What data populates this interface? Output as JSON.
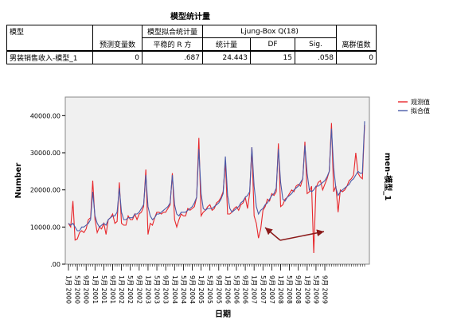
{
  "table": {
    "title": "模型统计量",
    "headers": {
      "model": "模型",
      "fit_stats_group": "模型拟合统计量",
      "ljung_box_group": "Ljung-Box Q(18)",
      "predictors": "预测变量数",
      "stationary_r2": "平稳的 R 方",
      "statistic": "统计量",
      "df": "DF",
      "sig": "Sig.",
      "outliers": "离群值数"
    },
    "row": {
      "model": "男装销售收入-模型_1",
      "predictors": "0",
      "stationary_r2": ".687",
      "statistic": "24.443",
      "df": "15",
      "sig": ".058",
      "outliers": "0"
    }
  },
  "chart_data": {
    "type": "line",
    "ylabel": "Number",
    "xlabel": "日期",
    "right_label": "men-模型_1",
    "ylim": [
      0,
      45000
    ],
    "yticks": [
      ".00",
      "10000.00",
      "20000.00",
      "30000.00",
      "40000.00"
    ],
    "ytick_values": [
      0,
      10000,
      20000,
      30000,
      40000
    ],
    "x_tick_labels": [
      "1月 2000",
      "5月 2000",
      "9月 2000",
      "1月 2001",
      "5月 2001",
      "9月 2001",
      "1月 2002",
      "5月 2002",
      "9月 2002",
      "1月 2003",
      "5月 2003",
      "9月 2003",
      "1月 2004",
      "5月 2004",
      "9月 2004",
      "1月 2005",
      "5月 2005",
      "9月 2005",
      "1月 2006",
      "5月 2006",
      "9月 2006",
      "1月 2007",
      "5月 2007",
      "9月 2007",
      "1月 2008",
      "5月 2008",
      "9月 2008",
      "1月 2009",
      "5月 2009",
      "9月 2009"
    ],
    "legend": "top-right",
    "series": [
      {
        "name": "观测值",
        "color": "#e8262b",
        "values": [
          11000,
          10000,
          17000,
          6500,
          6800,
          8500,
          9000,
          8500,
          9500,
          12000,
          12500,
          22500,
          12000,
          8500,
          10000,
          9500,
          11000,
          8000,
          12000,
          12500,
          13500,
          11000,
          11500,
          22000,
          11000,
          10500,
          10500,
          13000,
          12000,
          12000,
          13500,
          12000,
          13500,
          14000,
          15500,
          25500,
          8000,
          11000,
          10500,
          12500,
          14000,
          14000,
          13500,
          14000,
          14000,
          15000,
          16000,
          24500,
          12000,
          10000,
          12000,
          13500,
          13000,
          13000,
          15000,
          14500,
          15000,
          15500,
          18000,
          34000,
          13000,
          14000,
          14500,
          15500,
          16000,
          14500,
          15000,
          16500,
          17000,
          18000,
          19500,
          27500,
          13500,
          13500,
          14000,
          15000,
          15500,
          14500,
          16000,
          16500,
          18000,
          15000,
          19000,
          31500,
          13000,
          11000,
          7000,
          9500,
          14500,
          15500,
          17500,
          17000,
          19000,
          18500,
          19500,
          32500,
          15500,
          16000,
          17500,
          18000,
          19000,
          20000,
          19500,
          21000,
          21500,
          21000,
          23000,
          33000,
          19000,
          19500,
          21000,
          3000,
          20500,
          22000,
          22500,
          20000,
          21500,
          23000,
          25000,
          38000,
          19500,
          21000,
          14000,
          20000,
          19500,
          20000,
          21000,
          22500,
          23000,
          24000,
          30000,
          24500,
          23500,
          23000,
          37500
        ]
      },
      {
        "name": "拟合值",
        "color": "#4a5aa8",
        "values": [
          11000,
          10500,
          11000,
          10000,
          9000,
          9000,
          10000,
          10000,
          10500,
          11000,
          12000,
          19500,
          13000,
          11000,
          10000,
          10500,
          11000,
          10500,
          12000,
          12500,
          13000,
          13000,
          14000,
          20500,
          14000,
          12000,
          12000,
          12500,
          12500,
          12500,
          13500,
          13500,
          14000,
          15000,
          16000,
          24000,
          15500,
          13000,
          12000,
          12500,
          13500,
          13500,
          14000,
          14500,
          15000,
          15500,
          16500,
          24000,
          16000,
          13500,
          13000,
          14000,
          14000,
          14000,
          14500,
          15000,
          15500,
          16500,
          18000,
          31000,
          19000,
          15000,
          14500,
          15000,
          15000,
          15000,
          15500,
          16000,
          16500,
          17500,
          19000,
          29000,
          18500,
          15000,
          14000,
          14500,
          15000,
          15500,
          16500,
          17000,
          18000,
          18500,
          19500,
          31500,
          21000,
          15500,
          13500,
          14500,
          15000,
          16000,
          16500,
          17500,
          18500,
          19000,
          20500,
          31000,
          22000,
          17500,
          17000,
          18000,
          18500,
          19000,
          20000,
          20500,
          21000,
          22000,
          23000,
          32000,
          24500,
          20000,
          19500,
          20000,
          21000,
          21000,
          21500,
          22000,
          22500,
          23500,
          25000,
          36500,
          26000,
          20500,
          18500,
          19500,
          20000,
          20500,
          21000,
          21500,
          22500,
          23000,
          24000,
          25000,
          24500,
          24500,
          38500
        ]
      }
    ],
    "legend_colors": {
      "observed": "#e8262b",
      "fitted": "#4a5aa8"
    },
    "arrow_color": "#8b1a1a",
    "plot_background": "#f0f0f0"
  }
}
